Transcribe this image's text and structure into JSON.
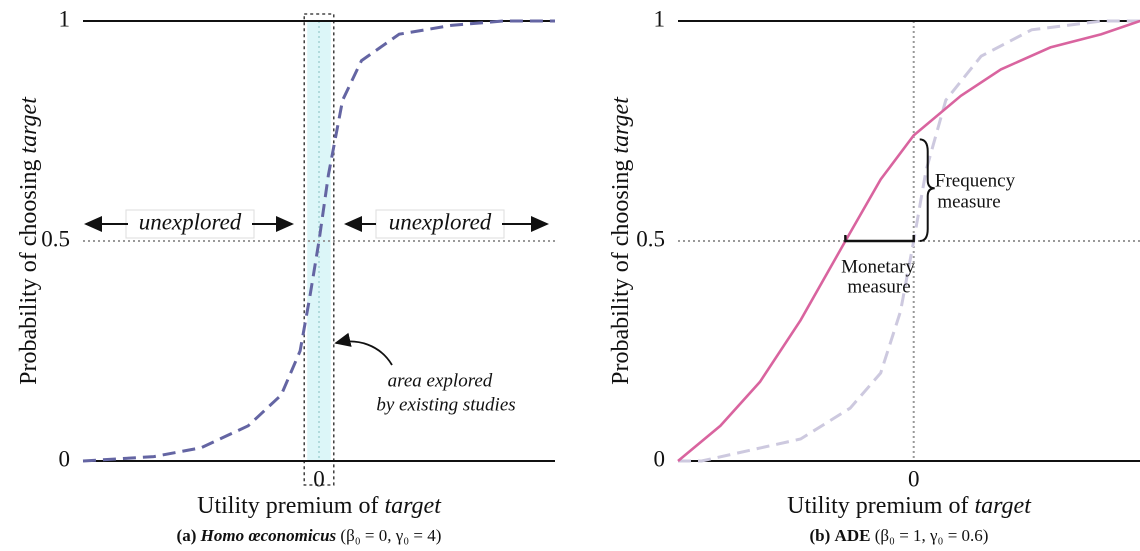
{
  "chart_data": [
    {
      "type": "line",
      "xlabel": "Utility premium of",
      "xlabel_em": "target",
      "ylabel": "Probability of choosing",
      "ylabel_em": "target",
      "caption_label": "(a)",
      "caption_name": "Homo œconomicus",
      "caption_params": "(β₀ = 0, γ₀ = 4)",
      "xlim": [
        -5,
        5
      ],
      "ylim": [
        0,
        1
      ],
      "xticks": [
        0
      ],
      "yticks": [
        0,
        0.5,
        1
      ],
      "hlines": [
        0.5
      ],
      "vlines": [
        0
      ],
      "explored_region": [
        -0.25,
        0.25
      ],
      "annotations": {
        "unexplored_left": "unexplored",
        "unexplored_right": "unexplored",
        "explored_1": "area explored",
        "explored_2": "by existing studies"
      },
      "series": [
        {
          "color": "#6465a3",
          "style": "dashed",
          "x": [
            -5,
            -3.5,
            -2.5,
            -1.5,
            -0.8,
            -0.4,
            -0.2,
            0,
            0.2,
            0.5,
            0.9,
            1.7,
            2.8,
            3.9,
            5
          ],
          "values": [
            0,
            0.01,
            0.03,
            0.08,
            0.15,
            0.25,
            0.37,
            0.5,
            0.65,
            0.82,
            0.91,
            0.97,
            0.99,
            1,
            1
          ]
        }
      ]
    },
    {
      "type": "line",
      "xlabel": "Utility premium of",
      "xlabel_em": "target",
      "ylabel": "Probability of choosing",
      "ylabel_em": "target",
      "caption_label": "(b)",
      "caption_name": "ADE",
      "caption_params": "(β₀ = 1, γ₀ = 0.6)",
      "xlim": [
        -5,
        4.8
      ],
      "ylim": [
        0,
        1
      ],
      "xticks": [
        0
      ],
      "yticks": [
        0,
        0.5,
        1
      ],
      "hlines": [
        0.5
      ],
      "vlines": [
        0
      ],
      "annotations": {
        "frequency_1": "Frequency",
        "frequency_2": "measure",
        "monetary_1": "Monetary",
        "monetary_2": "measure"
      },
      "series": [
        {
          "color": "#cdc9df",
          "style": "dashed",
          "x": [
            -5,
            -4.5,
            -2.4,
            -1.35,
            -0.7,
            -0.28,
            0,
            0.26,
            0.68,
            1.43,
            2.5,
            4,
            4.8
          ],
          "values": [
            0,
            0,
            0.05,
            0.12,
            0.2,
            0.34,
            0.5,
            0.66,
            0.82,
            0.92,
            0.98,
            1,
            1
          ]
        },
        {
          "color": "#d9649f",
          "style": "solid",
          "x": [
            -5,
            -4.1,
            -3.26,
            -2.4,
            -1.45,
            -0.7,
            0,
            1,
            1.85,
            2.9,
            3.98,
            4.8
          ],
          "values": [
            0,
            0.08,
            0.18,
            0.32,
            0.5,
            0.64,
            0.74,
            0.83,
            0.89,
            0.94,
            0.97,
            1
          ]
        }
      ]
    }
  ]
}
